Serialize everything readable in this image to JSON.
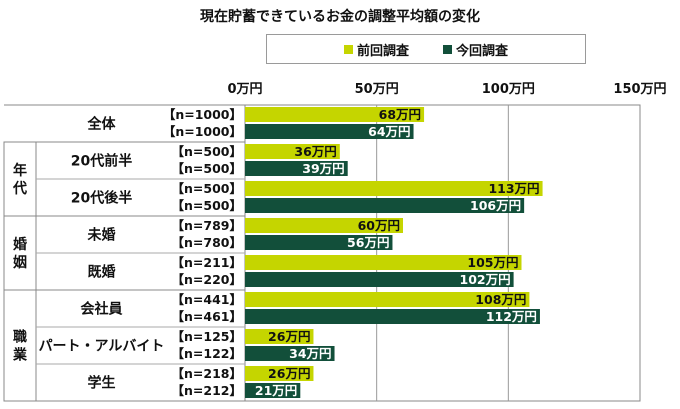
{
  "title": "現在貯蓄できているお金の調整平均額の変化",
  "chart_data": {
    "type": "bar",
    "orientation": "horizontal",
    "title": "現在貯蓄できているお金の調整平均額の変化",
    "xlim": [
      0,
      150
    ],
    "x_ticks": [
      "0万円",
      "50万円",
      "100万円",
      "150万円"
    ],
    "grid": true,
    "legend_position": "top",
    "series": [
      {
        "name": "前回調査",
        "color": "#c5d500"
      },
      {
        "name": "今回調査",
        "color": "#124f3a"
      }
    ],
    "groups": [
      {
        "section": "",
        "category": "全体",
        "prev": {
          "n": "【n=1000】",
          "value": 68,
          "label": "68万円"
        },
        "curr": {
          "n": "【n=1000】",
          "value": 64,
          "label": "64万円"
        }
      },
      {
        "section": "年代",
        "category": "20代前半",
        "prev": {
          "n": "【n=500】",
          "value": 36,
          "label": "36万円"
        },
        "curr": {
          "n": "【n=500】",
          "value": 39,
          "label": "39万円"
        }
      },
      {
        "section": "年代",
        "category": "20代後半",
        "prev": {
          "n": "【n=500】",
          "value": 113,
          "label": "113万円"
        },
        "curr": {
          "n": "【n=500】",
          "value": 106,
          "label": "106万円"
        }
      },
      {
        "section": "婚姻",
        "category": "未婚",
        "prev": {
          "n": "【n=789】",
          "value": 60,
          "label": "60万円"
        },
        "curr": {
          "n": "【n=780】",
          "value": 56,
          "label": "56万円"
        }
      },
      {
        "section": "婚姻",
        "category": "既婚",
        "prev": {
          "n": "【n=211】",
          "value": 105,
          "label": "105万円"
        },
        "curr": {
          "n": "【n=220】",
          "value": 102,
          "label": "102万円"
        }
      },
      {
        "section": "職業",
        "category": "会社員",
        "prev": {
          "n": "【n=441】",
          "value": 108,
          "label": "108万円"
        },
        "curr": {
          "n": "【n=461】",
          "value": 112,
          "label": "112万円"
        }
      },
      {
        "section": "職業",
        "category": "パート・アルバイト",
        "prev": {
          "n": "【n=125】",
          "value": 26,
          "label": "26万円"
        },
        "curr": {
          "n": "【n=122】",
          "value": 34,
          "label": "34万円"
        }
      },
      {
        "section": "職業",
        "category": "学生",
        "prev": {
          "n": "【n=218】",
          "value": 26,
          "label": "26万円"
        },
        "curr": {
          "n": "【n=212】",
          "value": 21,
          "label": "21万円"
        }
      }
    ],
    "sections": [
      {
        "label": "年代"
      },
      {
        "label": "婚姻"
      },
      {
        "label": "職業"
      }
    ]
  }
}
